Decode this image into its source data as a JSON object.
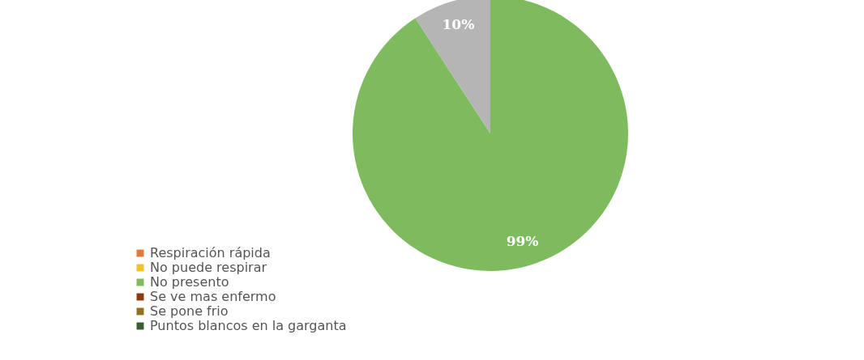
{
  "chart_data": {
    "type": "pie",
    "categories": [
      "Respiración rápida",
      "No puede respirar",
      "No presento",
      "Se ve mas enfermo",
      "Se pone frio",
      "Puntos blancos en la garganta",
      null
    ],
    "values": [
      0,
      0,
      99,
      0,
      0,
      0,
      10
    ],
    "colors": [
      "#e07b39",
      "#f2c12e",
      "#7dbb5e",
      "#8a3b12",
      "#94701c",
      "#3c5f30",
      "#b5b5b5"
    ],
    "value_labels": [
      null,
      null,
      "99%",
      null,
      null,
      null,
      "10%"
    ],
    "legend": "bottom left"
  }
}
